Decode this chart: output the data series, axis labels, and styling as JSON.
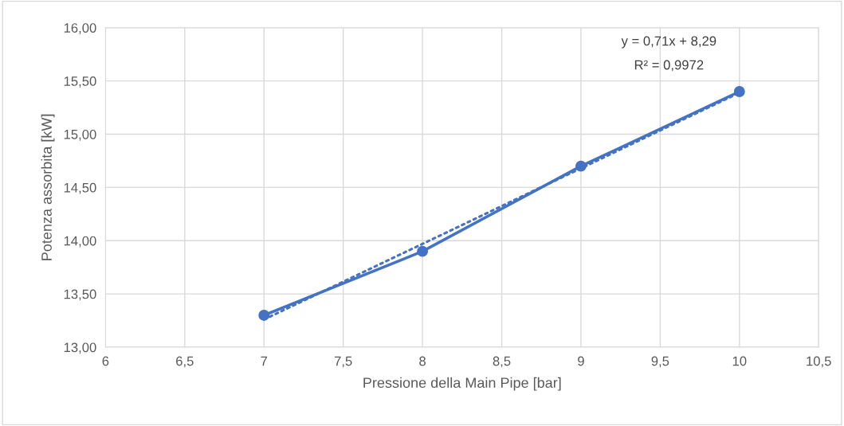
{
  "chart_data": {
    "type": "line",
    "xlabel": "Pressione della Main Pipe [bar]",
    "ylabel": "Potenza assorbita [kW]",
    "x": [
      7,
      8,
      9,
      10
    ],
    "series": [
      {
        "color": "#4472c4",
        "values": [
          13.3,
          13.9,
          14.7,
          15.4
        ],
        "marker": "circle",
        "line_style": "solid"
      },
      {
        "type": "line",
        "x": [
          7,
          10
        ],
        "color": "#4472c4",
        "values": [
          13.26,
          15.39
        ],
        "marker": "none",
        "line_style": "dotted"
      }
    ],
    "annotations": [
      "y = 0,71x + 8,29",
      "R² = 0,9972"
    ],
    "xlim": [
      6,
      10.5
    ],
    "xticks": [
      6,
      {
        "value": 6.5,
        "label": "6,5"
      },
      7,
      {
        "value": 7.5,
        "label": "7,5"
      },
      8,
      {
        "value": 8.5,
        "label": "8,5"
      },
      9,
      {
        "value": 9.5,
        "label": "9,5"
      },
      10,
      {
        "value": 10.5,
        "label": "10,5"
      }
    ],
    "ylim": [
      13,
      16
    ],
    "yticks": [
      {
        "value": 13,
        "label": "13,00"
      },
      {
        "value": 13.5,
        "label": "13,50"
      },
      {
        "value": 14,
        "label": "14,00"
      },
      {
        "value": 14.5,
        "label": "14,50"
      },
      {
        "value": 15,
        "label": "15,00"
      },
      {
        "value": 15.5,
        "label": "15,50"
      },
      {
        "value": 16,
        "label": "16,00"
      }
    ],
    "grid": true,
    "legend": false
  }
}
